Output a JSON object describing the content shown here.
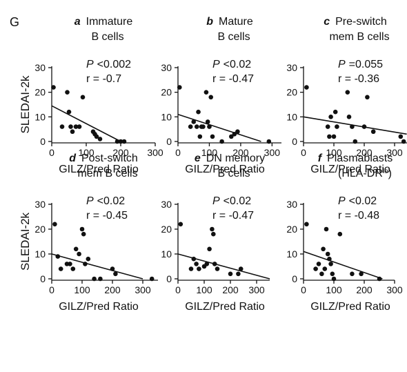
{
  "figure_label": "G",
  "chart_data": [
    {
      "type": "scatter",
      "letter": "a",
      "title_lines": [
        "Immature",
        "B cells"
      ],
      "p_label": "P",
      "p_value": "<0.002",
      "r_text": "r = -0.7",
      "xlabel": "GILZ/Pred Ratio",
      "ylabel": "SLEDAI-2k",
      "xlim": [
        0,
        300
      ],
      "ylim": [
        0,
        30
      ],
      "xticks": [
        0,
        100,
        200,
        300
      ],
      "yticks": [
        0,
        10,
        20,
        30
      ],
      "x": [
        5,
        30,
        45,
        50,
        55,
        60,
        70,
        80,
        90,
        120,
        125,
        130,
        140,
        190,
        200,
        210
      ],
      "values": [
        22,
        6,
        20,
        12,
        6,
        4,
        6,
        6,
        18,
        4,
        3,
        2,
        1,
        0,
        0,
        0
      ],
      "fit": {
        "x": [
          0,
          200
        ],
        "y": [
          14.5,
          0
        ]
      }
    },
    {
      "type": "scatter",
      "letter": "b",
      "title_lines": [
        "Mature",
        "B cells"
      ],
      "p_label": "P",
      "p_value": "<0.02",
      "r_text": "r = -0.47",
      "xlabel": "GILZ/Pred Ratio",
      "xlim": [
        0,
        330
      ],
      "ylim": [
        0,
        30
      ],
      "xticks": [
        0,
        100,
        200,
        300
      ],
      "yticks": [
        0,
        10,
        20,
        30
      ],
      "x": [
        5,
        40,
        50,
        60,
        65,
        70,
        75,
        80,
        90,
        95,
        100,
        105,
        110,
        140,
        170,
        180,
        190,
        290
      ],
      "values": [
        22,
        6,
        8,
        6,
        12,
        2,
        6,
        6,
        20,
        8,
        6,
        18,
        2,
        0,
        2,
        3,
        4,
        0
      ],
      "fit": {
        "x": [
          0,
          265
        ],
        "y": [
          11,
          0
        ]
      }
    },
    {
      "type": "scatter",
      "letter": "c",
      "title_lines": [
        "Pre-switch",
        "mem B cells"
      ],
      "p_label": "P",
      "p_value": "=0.055",
      "r_text": "r = -0.36",
      "xlabel": "GILZ/Pred Ratio",
      "xlim": [
        0,
        350
      ],
      "ylim": [
        0,
        30
      ],
      "xticks": [
        0,
        100,
        200,
        300
      ],
      "yticks": [
        0,
        10,
        20,
        30
      ],
      "x": [
        10,
        80,
        85,
        90,
        100,
        105,
        110,
        145,
        150,
        160,
        170,
        200,
        210,
        230,
        320,
        330
      ],
      "values": [
        22,
        6,
        2,
        10,
        2,
        12,
        6,
        20,
        10,
        6,
        0,
        6,
        18,
        4,
        2,
        0
      ],
      "fit": {
        "x": [
          0,
          340
        ],
        "y": [
          10,
          3
        ]
      }
    },
    {
      "type": "scatter",
      "letter": "d",
      "title_lines": [
        "Post-switch",
        "mem B cells"
      ],
      "p_label": "P",
      "p_value": "<0.02",
      "r_text": "r = -0.45",
      "xlabel": "GILZ/Pred Ratio",
      "ylabel": "SLEDAI-2k",
      "xlim": [
        0,
        350
      ],
      "ylim": [
        0,
        30
      ],
      "xticks": [
        0,
        100,
        200,
        300
      ],
      "yticks": [
        0,
        10,
        20,
        30
      ],
      "x": [
        10,
        20,
        30,
        50,
        60,
        70,
        80,
        90,
        100,
        105,
        110,
        120,
        140,
        160,
        200,
        210,
        330
      ],
      "values": [
        22,
        9,
        4,
        6,
        6,
        4,
        12,
        10,
        20,
        18,
        6,
        8,
        0,
        0,
        4,
        2,
        0
      ],
      "fit": {
        "x": [
          0,
          300
        ],
        "y": [
          10,
          0
        ]
      }
    },
    {
      "type": "scatter",
      "letter": "e",
      "title_lines": [
        "DN memory",
        "B cells"
      ],
      "p_label": "P",
      "p_value": "<0.02",
      "r_text": "r = -0.47",
      "xlabel": "GILZ/Pred Ratio",
      "xlim": [
        0,
        350
      ],
      "ylim": [
        0,
        30
      ],
      "xticks": [
        0,
        100,
        200,
        300
      ],
      "yticks": [
        0,
        10,
        20,
        30
      ],
      "x": [
        10,
        50,
        60,
        70,
        80,
        100,
        110,
        120,
        130,
        135,
        140,
        150,
        200,
        230,
        240
      ],
      "values": [
        22,
        4,
        8,
        6,
        4,
        5,
        6,
        12,
        20,
        18,
        6,
        4,
        2,
        2,
        4
      ],
      "fit": {
        "x": [
          0,
          350
        ],
        "y": [
          10,
          0
        ]
      }
    },
    {
      "type": "scatter",
      "letter": "f",
      "title_lines": [
        "Plasmablasts",
        {
          "base": "(HLA-DR",
          "sup": "lo",
          "after": ")"
        }
      ],
      "p_label": "P",
      "p_value": "<0.02",
      "r_text": "r = -0.48",
      "xlabel": "GILZ/Pred Ratio",
      "xlim": [
        0,
        300
      ],
      "ylim": [
        0,
        30
      ],
      "xticks": [
        0,
        100,
        200,
        300
      ],
      "yticks": [
        0,
        10,
        20,
        30
      ],
      "x": [
        10,
        40,
        50,
        60,
        65,
        70,
        75,
        80,
        85,
        90,
        95,
        100,
        120,
        160,
        190,
        250
      ],
      "values": [
        22,
        4,
        6,
        2,
        12,
        4,
        20,
        10,
        8,
        6,
        2,
        0,
        18,
        2,
        2,
        0
      ],
      "fit": {
        "x": [
          0,
          260
        ],
        "y": [
          11,
          0
        ]
      }
    }
  ]
}
